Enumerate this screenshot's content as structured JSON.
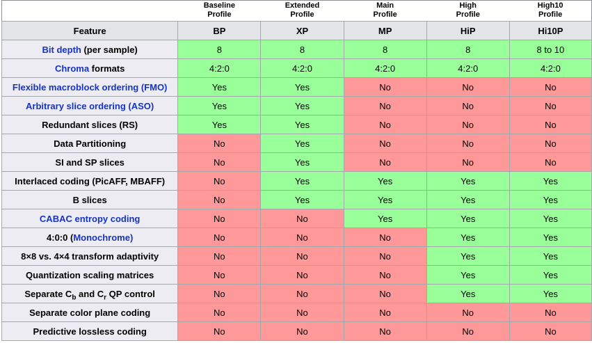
{
  "colors": {
    "yes_bg": "#99ff99",
    "no_bg": "#ff9898",
    "header_bg": "#e3e4e8",
    "feature_bg": "#ececf2",
    "border": "#a4a8ad",
    "outer_border": "#8d9196",
    "link": "#1533c4",
    "text": "#000000"
  },
  "feature_header": "Feature",
  "profiles": [
    {
      "label": "Baseline\nProfile",
      "abbr": "BP"
    },
    {
      "label": "Extended\nProfile",
      "abbr": "XP"
    },
    {
      "label": "Main\nProfile",
      "abbr": "MP"
    },
    {
      "label": "High\nProfile",
      "abbr": "HiP"
    },
    {
      "label": "High10\nProfile",
      "abbr": "Hi10P"
    }
  ],
  "rows": [
    {
      "feature": [
        {
          "text": "Bit depth",
          "link": true
        },
        {
          "text": " (per sample)"
        }
      ],
      "values": [
        {
          "text": "8",
          "state": "yes"
        },
        {
          "text": "8",
          "state": "yes"
        },
        {
          "text": "8",
          "state": "yes"
        },
        {
          "text": "8",
          "state": "yes"
        },
        {
          "text": "8 to 10",
          "state": "yes"
        }
      ]
    },
    {
      "feature": [
        {
          "text": "Chroma",
          "link": true
        },
        {
          "text": " formats"
        }
      ],
      "values": [
        {
          "text": "4:2:0",
          "state": "yes"
        },
        {
          "text": "4:2:0",
          "state": "yes"
        },
        {
          "text": "4:2:0",
          "state": "yes"
        },
        {
          "text": "4:2:0",
          "state": "yes"
        },
        {
          "text": "4:2:0",
          "state": "yes"
        }
      ]
    },
    {
      "feature": [
        {
          "text": "Flexible macroblock ordering (FMO)",
          "link": true
        }
      ],
      "values": [
        {
          "text": "Yes",
          "state": "yes"
        },
        {
          "text": "Yes",
          "state": "yes"
        },
        {
          "text": "No",
          "state": "no"
        },
        {
          "text": "No",
          "state": "no"
        },
        {
          "text": "No",
          "state": "no"
        }
      ]
    },
    {
      "feature": [
        {
          "text": "Arbitrary slice ordering (ASO)",
          "link": true
        }
      ],
      "values": [
        {
          "text": "Yes",
          "state": "yes"
        },
        {
          "text": "Yes",
          "state": "yes"
        },
        {
          "text": "No",
          "state": "no"
        },
        {
          "text": "No",
          "state": "no"
        },
        {
          "text": "No",
          "state": "no"
        }
      ]
    },
    {
      "feature": [
        {
          "text": "Redundant slices (RS)"
        }
      ],
      "values": [
        {
          "text": "Yes",
          "state": "yes"
        },
        {
          "text": "Yes",
          "state": "yes"
        },
        {
          "text": "No",
          "state": "no"
        },
        {
          "text": "No",
          "state": "no"
        },
        {
          "text": "No",
          "state": "no"
        }
      ]
    },
    {
      "feature": [
        {
          "text": "Data Partitioning"
        }
      ],
      "values": [
        {
          "text": "No",
          "state": "no"
        },
        {
          "text": "Yes",
          "state": "yes"
        },
        {
          "text": "No",
          "state": "no"
        },
        {
          "text": "No",
          "state": "no"
        },
        {
          "text": "No",
          "state": "no"
        }
      ]
    },
    {
      "feature": [
        {
          "text": "SI and SP slices"
        }
      ],
      "values": [
        {
          "text": "No",
          "state": "no"
        },
        {
          "text": "Yes",
          "state": "yes"
        },
        {
          "text": "No",
          "state": "no"
        },
        {
          "text": "No",
          "state": "no"
        },
        {
          "text": "No",
          "state": "no"
        }
      ]
    },
    {
      "feature": [
        {
          "text": "Interlaced coding (PicAFF, MBAFF)"
        }
      ],
      "values": [
        {
          "text": "No",
          "state": "no"
        },
        {
          "text": "Yes",
          "state": "yes"
        },
        {
          "text": "Yes",
          "state": "yes"
        },
        {
          "text": "Yes",
          "state": "yes"
        },
        {
          "text": "Yes",
          "state": "yes"
        }
      ]
    },
    {
      "feature": [
        {
          "text": "B slices"
        }
      ],
      "values": [
        {
          "text": "No",
          "state": "no"
        },
        {
          "text": "Yes",
          "state": "yes"
        },
        {
          "text": "Yes",
          "state": "yes"
        },
        {
          "text": "Yes",
          "state": "yes"
        },
        {
          "text": "Yes",
          "state": "yes"
        }
      ]
    },
    {
      "feature": [
        {
          "text": "CABAC entropy coding",
          "link": true
        }
      ],
      "values": [
        {
          "text": "No",
          "state": "no"
        },
        {
          "text": "No",
          "state": "no"
        },
        {
          "text": "Yes",
          "state": "yes"
        },
        {
          "text": "Yes",
          "state": "yes"
        },
        {
          "text": "Yes",
          "state": "yes"
        }
      ]
    },
    {
      "feature": [
        {
          "text": "4:0:0 ("
        },
        {
          "text": "Monochrome",
          "link": true
        },
        {
          "text": ")",
          "link": true
        }
      ],
      "values": [
        {
          "text": "No",
          "state": "no"
        },
        {
          "text": "No",
          "state": "no"
        },
        {
          "text": "No",
          "state": "no"
        },
        {
          "text": "Yes",
          "state": "yes"
        },
        {
          "text": "Yes",
          "state": "yes"
        }
      ]
    },
    {
      "feature": [
        {
          "text": "8×8 vs. 4×4 transform adaptivity"
        }
      ],
      "values": [
        {
          "text": "No",
          "state": "no"
        },
        {
          "text": "No",
          "state": "no"
        },
        {
          "text": "No",
          "state": "no"
        },
        {
          "text": "Yes",
          "state": "yes"
        },
        {
          "text": "Yes",
          "state": "yes"
        }
      ]
    },
    {
      "feature": [
        {
          "text": "Quantization scaling matrices"
        }
      ],
      "values": [
        {
          "text": "No",
          "state": "no"
        },
        {
          "text": "No",
          "state": "no"
        },
        {
          "text": "No",
          "state": "no"
        },
        {
          "text": "Yes",
          "state": "yes"
        },
        {
          "text": "Yes",
          "state": "yes"
        }
      ]
    },
    {
      "feature": [
        {
          "text": "Separate C"
        },
        {
          "text": "b",
          "sub": true
        },
        {
          "text": " and C"
        },
        {
          "text": "r",
          "sub": true
        },
        {
          "text": " QP control"
        }
      ],
      "values": [
        {
          "text": "No",
          "state": "no"
        },
        {
          "text": "No",
          "state": "no"
        },
        {
          "text": "No",
          "state": "no"
        },
        {
          "text": "Yes",
          "state": "yes"
        },
        {
          "text": "Yes",
          "state": "yes"
        }
      ]
    },
    {
      "feature": [
        {
          "text": "Separate color plane coding"
        }
      ],
      "values": [
        {
          "text": "No",
          "state": "no"
        },
        {
          "text": "No",
          "state": "no"
        },
        {
          "text": "No",
          "state": "no"
        },
        {
          "text": "No",
          "state": "no"
        },
        {
          "text": "No",
          "state": "no"
        }
      ]
    },
    {
      "feature": [
        {
          "text": "Predictive lossless coding"
        }
      ],
      "values": [
        {
          "text": "No",
          "state": "no"
        },
        {
          "text": "No",
          "state": "no"
        },
        {
          "text": "No",
          "state": "no"
        },
        {
          "text": "No",
          "state": "no"
        },
        {
          "text": "No",
          "state": "no"
        }
      ]
    }
  ]
}
